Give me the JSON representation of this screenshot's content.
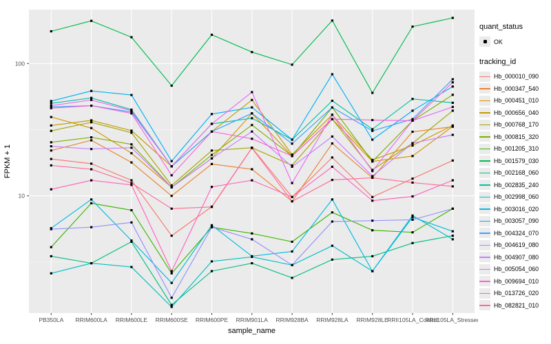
{
  "chart_data": {
    "type": "line",
    "title": "",
    "xlabel": "sample_name",
    "ylabel": "FPKM + 1",
    "y_scale": "log10",
    "ylim": [
      1.3,
      255
    ],
    "y_ticks": [
      10,
      100
    ],
    "y_minor": [
      3.162,
      31.62
    ],
    "grid": "on",
    "legend_position": "right",
    "point_marker": "small-black-square",
    "categories": [
      "PB350LA",
      "RRIM600LA",
      "RRIM600LE",
      "RRIM600SE",
      "RRIM600PE",
      "RRIM901LA",
      "RRIM928BA",
      "RRIM928LA",
      "RRIM928LE",
      "RRII105LA_Control",
      "RRII105LA_Stressed"
    ],
    "series": [
      {
        "name": "Hb_000010_090",
        "color": "#F8766D",
        "values": [
          19,
          17.5,
          13.1,
          5.0,
          8.3,
          23.1,
          9.8,
          19.5,
          9.8,
          13.5,
          18.5
        ]
      },
      {
        "name": "Hb_000347_540",
        "color": "#EA8331",
        "values": [
          22,
          26.3,
          17.9,
          10.0,
          17.4,
          15.9,
          9.1,
          24.9,
          13.7,
          30.5,
          33.3
        ]
      },
      {
        "name": "Hb_000451_010",
        "color": "#D89000",
        "values": [
          39.4,
          32.5,
          21,
          11.6,
          19.2,
          42,
          20,
          38,
          18.2,
          20,
          33.5
        ]
      },
      {
        "name": "Hb_000656_040",
        "color": "#C09B00",
        "values": [
          34,
          37.2,
          31.1,
          16.7,
          30.6,
          53,
          20.5,
          41,
          18.7,
          24,
          34
        ]
      },
      {
        "name": "Hb_000768_170",
        "color": "#A3A500",
        "values": [
          31,
          36,
          30,
          12,
          22,
          23.1,
          17,
          38,
          15.7,
          25,
          44
        ]
      },
      {
        "name": "Hb_000815_320",
        "color": "#7CAE00",
        "values": [
          25.4,
          27.7,
          24.5,
          11.6,
          20.4,
          34.3,
          20,
          46.6,
          18.2,
          37,
          58
        ]
      },
      {
        "name": "Hb_001205_310",
        "color": "#39B600",
        "values": [
          4.1,
          8.8,
          7.8,
          2.6,
          5.8,
          5.2,
          4.5,
          7.5,
          5.5,
          5.3,
          8.0
        ]
      },
      {
        "name": "Hb_001579_030",
        "color": "#00BB4E",
        "values": [
          175,
          210,
          158,
          68,
          165,
          122,
          98,
          211,
          60,
          190,
          221
        ]
      },
      {
        "name": "Hb_002168_060",
        "color": "#00BF7D",
        "values": [
          3.5,
          3.1,
          4.5,
          1.5,
          2.7,
          3.1,
          2.4,
          3.3,
          3.5,
          4.4,
          5.0
        ]
      },
      {
        "name": "Hb_002835_240",
        "color": "#00C1A3",
        "values": [
          50,
          55,
          44.8,
          16.7,
          35,
          38.6,
          26.6,
          52.3,
          31.9,
          54,
          50.5
        ]
      },
      {
        "name": "Hb_002998_060",
        "color": "#00BFC4",
        "values": [
          2.6,
          3.1,
          2.9,
          1.45,
          3.2,
          3.46,
          3.0,
          4.2,
          2.7,
          7.1,
          4.7
        ]
      },
      {
        "name": "Hb_003016_020",
        "color": "#00BAE0",
        "values": [
          5.7,
          9.4,
          4.6,
          2.2,
          6.0,
          3.5,
          3.8,
          9.4,
          2.7,
          6.9,
          5.4
        ]
      },
      {
        "name": "Hb_003057_090",
        "color": "#00B0F6",
        "values": [
          52,
          62,
          57.8,
          18.3,
          41.5,
          46.6,
          26.6,
          83,
          26.6,
          44,
          67
        ]
      },
      {
        "name": "Hb_004324_070",
        "color": "#35A2FF",
        "values": [
          47,
          48,
          43,
          16.7,
          30.6,
          42,
          24.8,
          46.6,
          31,
          38,
          76
        ]
      },
      {
        "name": "Hb_004619_080",
        "color": "#9590FF",
        "values": [
          5.6,
          5.8,
          6.3,
          1.7,
          5.8,
          4.7,
          3.0,
          6.4,
          6.5,
          6.6,
          8.0
        ]
      },
      {
        "name": "Hb_004907_080",
        "color": "#C77CFF",
        "values": [
          23.7,
          22.6,
          23.1,
          11.6,
          19.2,
          30.6,
          16.6,
          28.1,
          14.1,
          25,
          28.9
        ]
      },
      {
        "name": "Hb_005054_060",
        "color": "#E76BF3",
        "values": [
          48,
          53,
          44,
          16.7,
          35,
          60.8,
          12.5,
          41,
          15.4,
          37,
          47
        ]
      },
      {
        "name": "Hb_009694_010",
        "color": "#FA62DB",
        "values": [
          46,
          48,
          42,
          14.3,
          30.6,
          27,
          20,
          38,
          37.4,
          37,
          72
        ]
      },
      {
        "name": "Hb_013726_020",
        "color": "#FF62BC",
        "values": [
          11.2,
          13.1,
          12.1,
          2.7,
          11.7,
          13.1,
          9.8,
          16.6,
          9.2,
          9.9,
          13.1
        ]
      },
      {
        "name": "Hb_082821_010",
        "color": "#FF6A98",
        "values": [
          17,
          15.9,
          12.5,
          8.0,
          8.25,
          23,
          9.1,
          13.2,
          13.7,
          12.6,
          11.8
        ]
      }
    ]
  },
  "legend": {
    "quant_status_title": "quant_status",
    "quant_status_items": [
      {
        "label": "OK"
      }
    ],
    "tracking_title": "tracking_id"
  },
  "colors": {
    "panel_bg": "#EBEBEB",
    "grid_major": "#FFFFFF",
    "grid_minor": "#F7F7F7",
    "tick_text": "#4D4D4D",
    "axis_title": "#000000",
    "point": "#000000",
    "key_bg": "#EBEBEB",
    "tick_mark": "#333333"
  }
}
